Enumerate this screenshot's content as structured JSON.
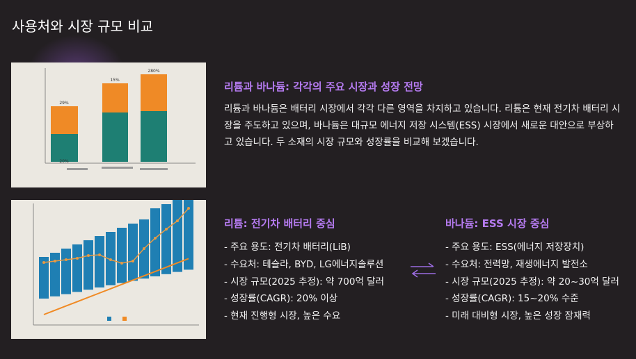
{
  "title": "사용처와 시장 규모 비교",
  "chart_image": {
    "labels": [
      "29%",
      "15%",
      "280%",
      "20%"
    ]
  },
  "intro": {
    "heading": "리튬과 바나듐: 각각의 주요 시장과 성장 전망",
    "text": "리튬과 바나듐은 배터리 시장에서 각각 다른 영역을 차지하고 있습니다. 리튬은 현재 전기차 배터리 시장을 주도하고 있으며, 바나듐은 대규모 에너지 저장 시스템(ESS) 시장에서 새로운 대안으로 부상하고 있습니다. 두 소재의 시장 규모와 성장률을 비교해 보겠습니다."
  },
  "columns": [
    {
      "heading": "리튬: 전기차 배터리 중심",
      "items": [
        "- 주요 용도: 전기차 배터리(LiB)",
        "- 수요처: 테슬라, BYD, LG에너지솔루션",
        "- 시장 규모(2025 추정): 약 700억 달러",
        "- 성장률(CAGR): 20% 이상",
        "- 현재 진행형 시장, 높은 수요"
      ]
    },
    {
      "heading": "바나듐: ESS 시장 중심",
      "items": [
        "- 주요 용도: ESS(에너지 저장장치)",
        "- 수요처: 전력망, 재생에너지 발전소",
        "- 시장 규모(2025 추정): 약 20~30억 달러",
        "- 성장률(CAGR): 15~20% 수준",
        "- 미래 대비형 시장, 높은 성장 잠재력"
      ]
    }
  ]
}
